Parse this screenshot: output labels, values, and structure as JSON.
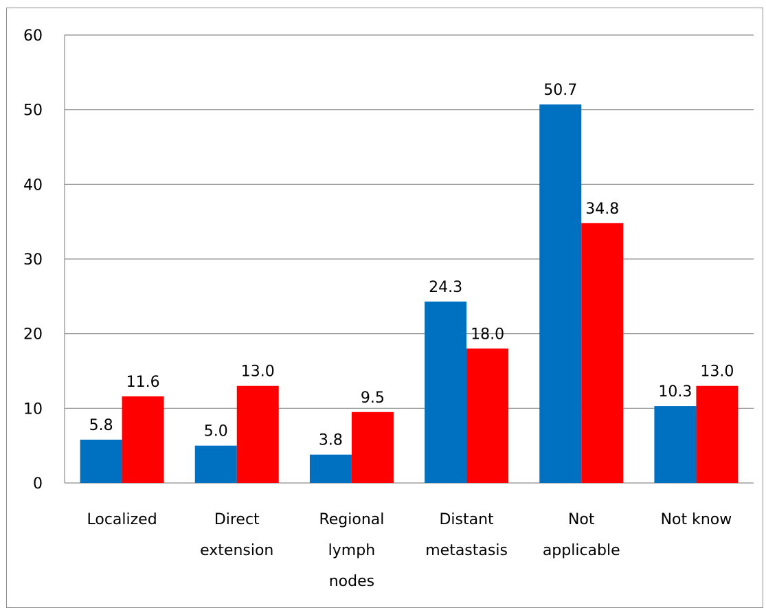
{
  "chart_data": {
    "type": "bar",
    "title": "",
    "xlabel": "",
    "ylabel": "",
    "ylim": [
      0,
      60
    ],
    "yticks": [
      0,
      10,
      20,
      30,
      40,
      50,
      60
    ],
    "grid": true,
    "legend": "none",
    "categories": [
      [
        "Localized"
      ],
      [
        "Direct",
        "extension"
      ],
      [
        "Regional",
        "lymph",
        "nodes"
      ],
      [
        "Distant",
        "metastasis"
      ],
      [
        "Not",
        "applicable"
      ],
      [
        "Not know"
      ]
    ],
    "series": [
      {
        "color": "#0070C0",
        "values": [
          5.8,
          5.0,
          3.8,
          24.3,
          50.7,
          10.3
        ],
        "labels": [
          "5.8",
          "5.0",
          "3.8",
          "24.3",
          "50.7",
          "10.3"
        ]
      },
      {
        "color": "#FF0000",
        "values": [
          11.6,
          13.0,
          9.5,
          18.0,
          34.8,
          13.0
        ],
        "labels": [
          "11.6",
          "13.0",
          "9.5",
          "18.0",
          "34.8",
          "13.0"
        ]
      }
    ],
    "colors": {
      "grid": "#8c8c8c",
      "axis": "#8c8c8c"
    }
  }
}
